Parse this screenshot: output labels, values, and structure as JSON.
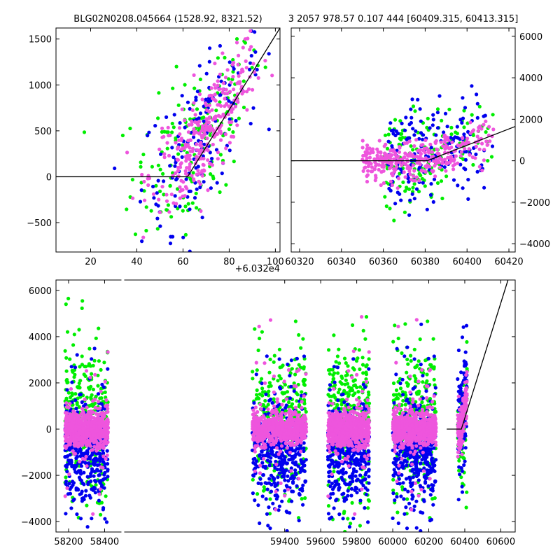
{
  "figure": {
    "title_left": "BLG02N0208.045664 (1528.92, 8321.52)",
    "title_right": "3 2057 978.57 0.107 444 [60409.315, 60413.315]",
    "offset_label": "+6.032e4"
  },
  "colors": {
    "green": "#00ee00",
    "blue": "#0000ee",
    "pink": "#ee55dd",
    "line": "#000000"
  },
  "chart_data": [
    {
      "type": "scatter",
      "xlim": [
        5,
        102
      ],
      "ylim": [
        -820,
        1620
      ],
      "xticks": [
        "20",
        "40",
        "60",
        "80",
        "100"
      ],
      "xtick_values": [
        20,
        40,
        60,
        80,
        100
      ],
      "yticks": [
        "−500",
        "0",
        "500",
        "1000",
        "1500"
      ],
      "ytick_values": [
        -500,
        0,
        500,
        1000,
        1500
      ],
      "model_line": {
        "x": [
          5,
          62,
          102
        ],
        "y": [
          0,
          0,
          1620
        ]
      },
      "series": [
        {
          "color": "green",
          "n": 180,
          "x_center": 66,
          "x_spread": 14,
          "slope": 38,
          "x0": 62,
          "noise": 420
        },
        {
          "color": "blue",
          "n": 160,
          "x_center": 68,
          "x_spread": 13,
          "slope": 38,
          "x0": 62,
          "noise": 380
        },
        {
          "color": "pink",
          "n": 320,
          "x_center": 70,
          "x_spread": 12,
          "slope": 38,
          "x0": 62,
          "noise": 260
        }
      ]
    },
    {
      "type": "scatter",
      "xlim": [
        60316,
        60423
      ],
      "ylim": [
        -4400,
        6400
      ],
      "x_offset": 60320,
      "xticks": [
        "60320",
        "60340",
        "60360",
        "60380",
        "60400",
        "60420"
      ],
      "xtick_values": [
        60320,
        60340,
        60360,
        60380,
        60400,
        60420
      ],
      "yticks": [
        "−4000",
        "−2000",
        "0",
        "2000",
        "4000",
        "6000"
      ],
      "ytick_values": [
        -4000,
        -2000,
        0,
        2000,
        4000,
        6000
      ],
      "model_line": {
        "x": [
          60316,
          60381,
          60423
        ],
        "y": [
          0,
          0,
          1650
        ]
      },
      "series": [
        {
          "color": "green",
          "n": 160,
          "x_min": 60360,
          "x_max": 60413,
          "noise": 1100
        },
        {
          "color": "blue",
          "n": 170,
          "x_min": 60362,
          "x_max": 60413,
          "noise": 1300
        },
        {
          "color": "pink",
          "n": 330,
          "x_min": 60350,
          "x_max": 60413,
          "noise": 450
        }
      ]
    },
    {
      "type": "scatter",
      "xlim": [
        58130,
        60680
      ],
      "ylim": [
        -4450,
        6450
      ],
      "xticks": [
        "58200",
        "58400",
        "59400",
        "59600",
        "59800",
        "60000",
        "60200",
        "60400",
        "60600"
      ],
      "xtick_values": [
        58200,
        58400,
        59400,
        59600,
        59800,
        60000,
        60200,
        60400,
        60600
      ],
      "yticks": [
        "−4000",
        "−2000",
        "0",
        "2000",
        "4000",
        "6000"
      ],
      "ytick_values": [
        -4000,
        -2000,
        0,
        2000,
        4000,
        6000
      ],
      "axis_break_after": 58400,
      "seasons": [
        {
          "x_min": 58180,
          "x_max": 58420
        },
        {
          "x_min": 59220,
          "x_max": 59520
        },
        {
          "x_min": 59640,
          "x_max": 59870
        },
        {
          "x_min": 60000,
          "x_max": 60240
        },
        {
          "x_min": 60360,
          "x_max": 60413
        }
      ],
      "model_line": {
        "x": [
          60300,
          60381,
          60640
        ],
        "y": [
          0,
          0,
          6450
        ]
      }
    }
  ]
}
